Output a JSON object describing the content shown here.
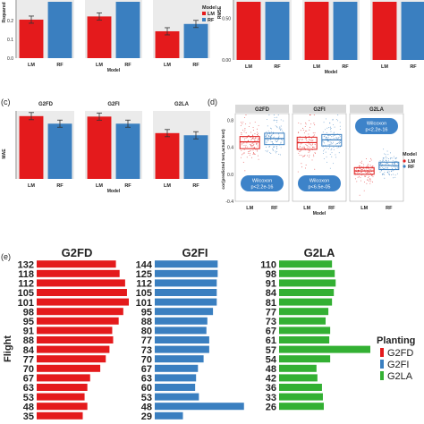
{
  "colors": {
    "LM": "#e41a1c",
    "RF": "#3a7fc0",
    "G2FD": "#e41a1c",
    "G2FI": "#3a7fc0",
    "G2LA": "#33b033",
    "box_lm": "#e02020",
    "box_rf": "#3a7fc0",
    "wilcox_fill": "#3d83c9",
    "facet_bg": "#d9d9d9",
    "panel_bg": "#ebebeb"
  },
  "legend_model": {
    "title": "Model",
    "items": [
      "LM",
      "RF"
    ]
  },
  "legend_planting": {
    "title": "Planting",
    "items": [
      "G2FD",
      "G2FI",
      "G2LA"
    ]
  },
  "chart_data": [
    {
      "id": "a",
      "type": "bar",
      "ylabel": "Rsquared",
      "xlabel": "Model",
      "ylim": [
        0,
        0.3
      ],
      "yticks": [
        "0.0",
        "0.1",
        "0.2"
      ],
      "categories": [
        "LM",
        "RF"
      ],
      "facets": [
        {
          "values": [
            0.205,
            0.3
          ]
        },
        {
          "values": [
            0.222,
            0.3
          ]
        },
        {
          "values": [
            0.143,
            0.182
          ]
        }
      ]
    },
    {
      "id": "b",
      "type": "bar",
      "ylabel": "RMSE",
      "xlabel": "Model",
      "ylim": [
        0,
        0.7
      ],
      "yticks": [
        "0.00",
        "0.50"
      ],
      "categories": [
        "LM",
        "RF"
      ],
      "facets": [
        {
          "values": [
            0.7,
            0.7
          ]
        },
        {
          "values": [
            0.7,
            0.7
          ]
        },
        {
          "values": [
            0.7,
            0.7
          ]
        }
      ]
    },
    {
      "id": "c",
      "label": "(c)",
      "type": "bar",
      "ylabel": "MAE",
      "xlabel": "Model",
      "ylim": [
        0,
        0.72
      ],
      "categories": [
        "LM",
        "RF"
      ],
      "facets": [
        {
          "name": "G2FD",
          "values": [
            0.665,
            0.585
          ]
        },
        {
          "name": "G2FI",
          "values": [
            0.66,
            0.585
          ]
        },
        {
          "name": "G2LA",
          "values": [
            0.485,
            0.462
          ]
        }
      ]
    },
    {
      "id": "d",
      "label": "(d)",
      "type": "box",
      "ylabel": "cor(predicted test,actual test)",
      "xlabel": "Model",
      "ylim": [
        -0.4,
        0.9
      ],
      "yticks": [
        {
          "v": -0.4,
          "t": "-0.4"
        },
        {
          "v": 0.0,
          "t": "0.0"
        },
        {
          "v": 0.4,
          "t": "0.4"
        },
        {
          "v": 0.8,
          "t": "0.8"
        }
      ],
      "categories": [
        "LM",
        "RF"
      ],
      "facets": [
        {
          "name": "G2FD",
          "medians": [
            0.48,
            0.53
          ],
          "q1": [
            0.38,
            0.44
          ],
          "q3": [
            0.56,
            0.61
          ],
          "wilcoxon": [
            "Wilcoxon",
            "p<2.2e-16"
          ]
        },
        {
          "name": "G2FI",
          "medians": [
            0.47,
            0.51
          ],
          "q1": [
            0.37,
            0.42
          ],
          "q3": [
            0.55,
            0.59
          ],
          "wilcoxon": [
            "Wilcoxon",
            "p<6.5e-05"
          ]
        },
        {
          "name": "G2LA",
          "medians": [
            0.05,
            0.13
          ],
          "q1": [
            0.0,
            0.07
          ],
          "q3": [
            0.1,
            0.18
          ],
          "wilcoxon": [
            "Wilcoxon",
            "p<2.2e-16"
          ]
        }
      ]
    },
    {
      "id": "e",
      "label": "(e)",
      "type": "bar",
      "orientation": "horizontal",
      "ylabel": "Flight",
      "groups": [
        {
          "name": "G2FD",
          "categories": [
            "132",
            "118",
            "112",
            "105",
            "101",
            "98",
            "95",
            "91",
            "88",
            "84",
            "77",
            "70",
            "67",
            "63",
            "53",
            "48",
            "35"
          ],
          "values": [
            0.86,
            0.9,
            0.96,
            0.98,
            1.0,
            0.94,
            0.89,
            0.82,
            0.83,
            0.79,
            0.75,
            0.69,
            0.58,
            0.55,
            0.52,
            0.55,
            0.5
          ]
        },
        {
          "name": "G2FI",
          "categories": [
            "144",
            "125",
            "112",
            "105",
            "101",
            "95",
            "88",
            "80",
            "77",
            "73",
            "70",
            "67",
            "63",
            "60",
            "53",
            "48",
            "29"
          ],
          "values": [
            0.67,
            0.67,
            0.66,
            0.66,
            0.66,
            0.62,
            0.56,
            0.55,
            0.58,
            0.58,
            0.52,
            0.46,
            0.44,
            0.43,
            0.47,
            0.95,
            0.3
          ]
        },
        {
          "name": "G2LA",
          "categories": [
            "110",
            "98",
            "91",
            "84",
            "81",
            "77",
            "73",
            "67",
            "61",
            "57",
            "54",
            "48",
            "42",
            "36",
            "33",
            "26"
          ],
          "values": [
            0.58,
            0.61,
            0.62,
            0.6,
            0.58,
            0.54,
            0.51,
            0.56,
            0.55,
            1.0,
            0.56,
            0.41,
            0.42,
            0.47,
            0.48,
            0.49
          ]
        }
      ]
    }
  ]
}
